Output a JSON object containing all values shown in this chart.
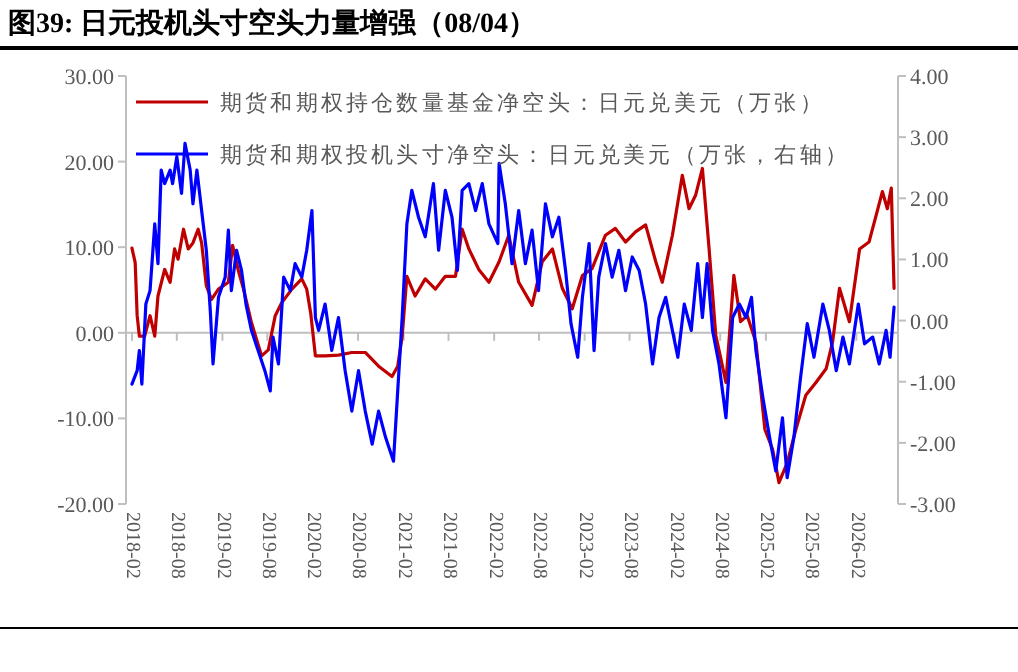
{
  "chart_data": {
    "type": "line",
    "title": "图39:  日元投机头寸空头力量增强（08/04）",
    "xlim": [
      "2018-01-08",
      "2026-07-19"
    ],
    "xticks": [
      {
        "value": "2018-02",
        "label": "2018-02"
      },
      {
        "value": "2018-08",
        "label": "2018-08"
      },
      {
        "value": "2019-02",
        "label": "2019-02"
      },
      {
        "value": "2019-08",
        "label": "2019-08"
      },
      {
        "value": "2020-02",
        "label": "2020-02"
      },
      {
        "value": "2020-08",
        "label": "2020-08"
      },
      {
        "value": "2021-02",
        "label": "2021-02"
      },
      {
        "value": "2021-08",
        "label": "2021-08"
      },
      {
        "value": "2022-02",
        "label": "2022-02"
      },
      {
        "value": "2022-08",
        "label": "2022-08"
      },
      {
        "value": "2023-02",
        "label": "2023-02"
      },
      {
        "value": "2023-08",
        "label": "2023-08"
      },
      {
        "value": "2024-02",
        "label": "2024-02"
      },
      {
        "value": "2024-08",
        "label": "2024-08"
      },
      {
        "value": "2025-02",
        "label": "2025-02"
      },
      {
        "value": "2025-08",
        "label": "2025-08"
      },
      {
        "value": "2026-02",
        "label": "2026-02"
      }
    ],
    "ylim": [
      -20,
      30
    ],
    "yticks": [
      {
        "value": -20,
        "label": "-20.00"
      },
      {
        "value": -10,
        "label": "-10.00"
      },
      {
        "value": 0,
        "label": "0.00"
      },
      {
        "value": 10,
        "label": "10.00"
      },
      {
        "value": 20,
        "label": "20.00"
      },
      {
        "value": 30,
        "label": "30.00"
      }
    ],
    "y2lim": [
      -3,
      4
    ],
    "y2ticks": [
      {
        "value": -3,
        "label": "-3.00"
      },
      {
        "value": -2,
        "label": "-2.00"
      },
      {
        "value": -1,
        "label": "-1.00"
      },
      {
        "value": 0,
        "label": "0.00"
      },
      {
        "value": 1,
        "label": "1.00"
      },
      {
        "value": 2,
        "label": "2.00"
      },
      {
        "value": 3,
        "label": "3.00"
      },
      {
        "value": 4,
        "label": "4.00"
      }
    ],
    "legend": "top",
    "line_style": "solid",
    "series": [
      {
        "name": "期货和期权持仓数量基金净空头：日元兑美元（万张）",
        "color": "#c00000",
        "x": [
          "2018-02-01",
          "2018-02-14",
          "2018-02-22",
          "2018-03-03",
          "2018-03-24",
          "2018-04-15",
          "2018-05-04",
          "2018-05-17",
          "2018-06-13",
          "2018-07-05",
          "2018-07-23",
          "2018-08-06",
          "2018-08-28",
          "2018-09-16",
          "2018-10-05",
          "2018-10-26",
          "2018-11-09",
          "2018-11-28",
          "2018-12-19",
          "2019-01-16",
          "2019-02-25",
          "2019-03-14",
          "2019-04-05",
          "2019-04-27",
          "2019-05-29",
          "2019-07-09",
          "2019-08-05",
          "2019-09-02",
          "2019-09-28",
          "2019-11-08",
          "2019-12-18",
          "2020-01-07",
          "2020-01-23",
          "2020-02-11",
          "2020-03-21",
          "2020-05-14",
          "2020-07-07",
          "2020-08-30",
          "2020-10-23",
          "2020-12-16",
          "2021-01-08",
          "2021-01-26",
          "2021-02-14",
          "2021-03-19",
          "2021-04-29",
          "2021-06-09",
          "2021-07-19",
          "2021-08-29",
          "2021-09-25",
          "2021-10-22",
          "2021-12-01",
          "2022-01-11",
          "2022-02-21",
          "2022-04-01",
          "2022-05-11",
          "2022-07-04",
          "2022-08-14",
          "2022-09-24",
          "2022-11-03",
          "2022-12-13",
          "2023-01-23",
          "2023-03-03",
          "2023-04-26",
          "2023-06-05",
          "2023-07-16",
          "2023-08-25",
          "2023-10-05",
          "2023-11-15",
          "2023-12-11",
          "2024-01-21",
          "2024-03-01",
          "2024-03-28",
          "2024-04-24",
          "2024-05-21",
          "2024-06-17",
          "2024-07-14",
          "2024-08-24",
          "2024-09-25",
          "2024-10-22",
          "2024-11-18",
          "2024-12-23",
          "2025-01-28",
          "2025-02-28",
          "2025-03-26",
          "2025-04-28",
          "2025-06-02",
          "2025-07-12",
          "2025-08-22",
          "2025-10-02",
          "2025-10-28",
          "2025-11-25",
          "2026-01-04",
          "2026-02-14",
          "2026-03-24",
          "2026-04-29",
          "2026-05-17",
          "2026-06-06",
          "2026-06-22",
          "2026-07-03"
        ],
        "values": [
          9.9,
          8.2,
          2,
          -0.4,
          -0.4,
          2,
          -0.4,
          4.3,
          7.4,
          5.9,
          9.8,
          8.6,
          12.1,
          9.8,
          10.5,
          12.1,
          10.5,
          5.5,
          3.9,
          5.1,
          5.9,
          10.2,
          7.4,
          5.1,
          1.2,
          -2.7,
          -2,
          2,
          3.5,
          5.1,
          6.3,
          5.1,
          2.3,
          -2.7,
          -2.7,
          -2.6,
          -2.3,
          -2.3,
          -3.9,
          -5.1,
          -3.9,
          -0.4,
          6.6,
          4.3,
          6.3,
          5.1,
          6.6,
          6.6,
          12.1,
          9.8,
          7.4,
          5.9,
          8.3,
          11.4,
          5.9,
          3.2,
          8.3,
          9.8,
          5.2,
          2.8,
          6.7,
          7.5,
          11.4,
          12.2,
          10.6,
          11.8,
          12.6,
          8.3,
          5.9,
          11.4,
          18.4,
          14.5,
          16.1,
          19.2,
          9.8,
          -0.3,
          -5.8,
          6.7,
          1.3,
          2,
          -1.1,
          -11.3,
          -13.6,
          -17.5,
          -15.2,
          -11.3,
          -7.3,
          -5.8,
          -4.2,
          -1.1,
          5.2,
          1.3,
          9.8,
          10.6,
          14.5,
          16.5,
          14.5,
          16.9,
          5.2
        ]
      },
      {
        "name": "期货和期权投机头寸净空头：日元兑美元（万张，右轴）",
        "color": "#0000ff",
        "axis": "y2",
        "x": [
          "2018-02-01",
          "2018-02-22",
          "2018-03-03",
          "2018-03-13",
          "2018-03-29",
          "2018-04-15",
          "2018-05-04",
          "2018-05-17",
          "2018-05-30",
          "2018-06-13",
          "2018-07-05",
          "2018-07-15",
          "2018-08-01",
          "2018-08-20",
          "2018-09-03",
          "2018-09-24",
          "2018-10-05",
          "2018-10-21",
          "2018-11-09",
          "2018-11-28",
          "2018-12-14",
          "2018-12-25",
          "2019-01-16",
          "2019-02-12",
          "2019-02-25",
          "2019-03-09",
          "2019-03-30",
          "2019-04-19",
          "2019-05-07",
          "2019-05-29",
          "2019-06-25",
          "2019-07-22",
          "2019-08-13",
          "2019-08-24",
          "2019-09-15",
          "2019-10-06",
          "2019-11-02",
          "2019-11-21",
          "2019-12-18",
          "2020-01-07",
          "2020-01-28",
          "2020-02-11",
          "2020-02-24",
          "2020-03-21",
          "2020-04-17",
          "2020-05-14",
          "2020-06-10",
          "2020-07-07",
          "2020-08-03",
          "2020-08-30",
          "2020-09-27",
          "2020-10-23",
          "2020-11-20",
          "2020-12-22",
          "2021-01-08",
          "2021-01-26",
          "2021-02-14",
          "2021-03-06",
          "2021-04-02",
          "2021-04-29",
          "2021-06-01",
          "2021-06-22",
          "2021-07-19",
          "2021-08-15",
          "2021-09-06",
          "2021-09-25",
          "2021-10-22",
          "2021-11-18",
          "2021-12-15",
          "2022-01-11",
          "2022-02-16",
          "2022-02-21",
          "2022-03-18",
          "2022-04-14",
          "2022-05-11",
          "2022-06-07",
          "2022-07-04",
          "2022-07-30",
          "2022-08-27",
          "2022-09-24",
          "2022-10-20",
          "2022-11-16",
          "2022-12-08",
          "2023-01-04",
          "2023-01-23",
          "2023-02-19",
          "2023-03-11",
          "2023-03-30",
          "2023-04-26",
          "2023-05-23",
          "2023-06-19",
          "2023-07-16",
          "2023-08-12",
          "2023-09-09",
          "2023-10-05",
          "2023-11-02",
          "2023-11-28",
          "2023-12-25",
          "2024-01-21",
          "2024-02-12",
          "2024-03-09",
          "2024-04-06",
          "2024-05-02",
          "2024-05-21",
          "2024-06-09",
          "2024-07-01",
          "2024-07-27",
          "2024-08-24",
          "2024-09-20",
          "2024-10-17",
          "2024-11-13",
          "2024-12-05",
          "2024-12-23",
          "2025-01-20",
          "2025-02-16",
          "2025-03-13",
          "2025-04-09",
          "2025-04-28",
          "2025-05-25",
          "2025-06-21",
          "2025-07-18",
          "2025-08-14",
          "2025-09-19",
          "2025-10-15",
          "2025-11-12",
          "2025-12-09",
          "2026-01-04",
          "2026-02-09",
          "2026-03-06",
          "2026-04-08",
          "2026-05-04",
          "2026-06-01",
          "2026-06-17",
          "2026-07-03"
        ],
        "values": [
          -1.04,
          -0.82,
          -0.49,
          -1.04,
          0.27,
          0.49,
          1.58,
          0.93,
          2.46,
          2.24,
          2.46,
          2.24,
          2.68,
          2.08,
          2.9,
          2.46,
          1.91,
          2.46,
          1.8,
          1.15,
          0.16,
          -0.71,
          0.38,
          0.71,
          1.48,
          0.49,
          1.15,
          0.82,
          0.27,
          -0.16,
          -0.49,
          -0.82,
          -1.15,
          -0.27,
          -0.71,
          0.71,
          0.49,
          0.93,
          0.71,
          1.15,
          1.8,
          0.05,
          -0.16,
          0.27,
          -0.49,
          0.05,
          -0.82,
          -1.48,
          -0.82,
          -1.48,
          -2.02,
          -1.48,
          -1.91,
          -2.3,
          -1.15,
          0.05,
          1.58,
          2.13,
          1.69,
          1.37,
          2.24,
          1.15,
          2.13,
          1.69,
          0.82,
          2.13,
          2.24,
          1.8,
          2.24,
          1.58,
          1.26,
          2.57,
          1.91,
          0.93,
          1.8,
          0.93,
          1.48,
          0.49,
          1.91,
          1.37,
          1.69,
          0.82,
          -0.05,
          -0.6,
          0.38,
          1.26,
          -0.49,
          0.71,
          1.26,
          0.71,
          1.15,
          0.49,
          1.04,
          0.82,
          0.27,
          -0.71,
          0.05,
          0.38,
          -0.16,
          -0.6,
          0.27,
          -0.16,
          0.93,
          0.05,
          0.93,
          -0.16,
          -0.71,
          -1.59,
          0.05,
          0.27,
          0.05,
          0.38,
          -0.49,
          -1.26,
          -1.91,
          -2.46,
          -1.59,
          -2.57,
          -1.91,
          -0.93,
          -0.05,
          -0.6,
          0.27,
          -0.16,
          -0.82,
          -0.27,
          -0.71,
          0.27,
          -0.38,
          -0.27,
          -0.71,
          -0.16,
          -0.6,
          0.22
        ]
      }
    ]
  }
}
